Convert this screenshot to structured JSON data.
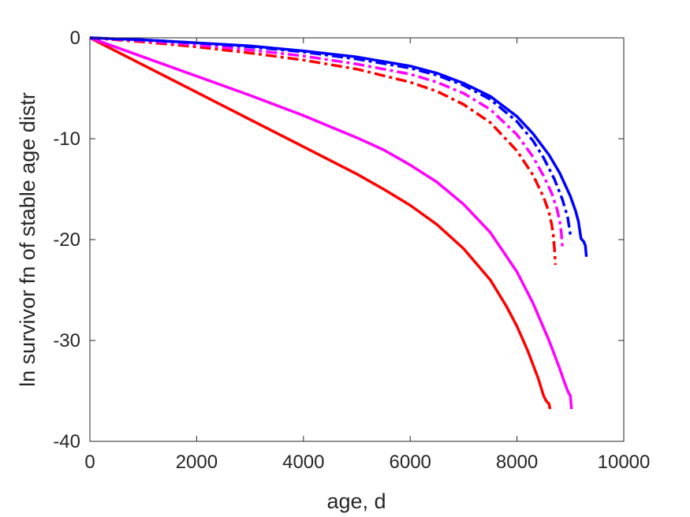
{
  "chart_data": {
    "type": "line",
    "title": "",
    "xlabel": "age, d",
    "ylabel": "ln survivor fn of stable age distr",
    "xlim": [
      0,
      10000
    ],
    "ylim": [
      -40,
      0
    ],
    "xticks": [
      0,
      2000,
      4000,
      6000,
      8000,
      10000
    ],
    "yticks": [
      0,
      -10,
      -20,
      -30,
      -40
    ],
    "xtick_labels": [
      "0",
      "2000",
      "4000",
      "6000",
      "8000",
      "10000"
    ],
    "ytick_labels": [
      "0",
      "-10",
      "-20",
      "-30",
      "-40"
    ],
    "grid": false,
    "legend": "none",
    "series": [
      {
        "color": "#ff0000",
        "style": "solid",
        "x": [
          0,
          1000,
          2000,
          3000,
          4000,
          5000,
          5500,
          6000,
          6500,
          7000,
          7500,
          7800,
          8000,
          8200,
          8400,
          8500,
          8550,
          8600,
          8620
        ],
        "y": [
          0,
          -2.7,
          -5.4,
          -8.1,
          -10.8,
          -13.5,
          -15.0,
          -16.6,
          -18.5,
          -20.9,
          -24.0,
          -26.6,
          -28.6,
          -31.0,
          -33.8,
          -35.5,
          -36.0,
          -36.3,
          -36.8
        ]
      },
      {
        "color": "#ff00ff",
        "style": "solid",
        "x": [
          0,
          1000,
          2000,
          3000,
          4000,
          5000,
          5500,
          6000,
          6500,
          7000,
          7500,
          8000,
          8300,
          8600,
          8800,
          8900,
          8950,
          8980,
          9000,
          9020
        ],
        "y": [
          0,
          -1.9,
          -3.8,
          -5.7,
          -7.7,
          -9.9,
          -11.1,
          -12.6,
          -14.3,
          -16.5,
          -19.3,
          -23.2,
          -26.3,
          -30.0,
          -32.8,
          -34.3,
          -35.0,
          -35.3,
          -35.5,
          -36.8
        ]
      },
      {
        "color": "#ff0000",
        "style": "dashdot",
        "x": [
          0,
          1000,
          2000,
          3000,
          4000,
          5000,
          6000,
          6500,
          7000,
          7500,
          8000,
          8300,
          8500,
          8600,
          8650,
          8680,
          8700,
          8720
        ],
        "y": [
          0,
          -0.4,
          -0.9,
          -1.5,
          -2.2,
          -3.1,
          -4.4,
          -5.3,
          -6.6,
          -8.4,
          -11.2,
          -13.6,
          -15.8,
          -17.3,
          -18.5,
          -19.5,
          -20.8,
          -22.5
        ]
      },
      {
        "color": "#ff00ff",
        "style": "dashdot",
        "x": [
          0,
          1000,
          2000,
          3000,
          4000,
          5000,
          6000,
          6500,
          7000,
          7500,
          8000,
          8300,
          8500,
          8650,
          8750,
          8800,
          8830,
          8850
        ],
        "y": [
          0,
          -0.3,
          -0.7,
          -1.2,
          -1.8,
          -2.6,
          -3.6,
          -4.4,
          -5.5,
          -7.1,
          -9.6,
          -11.8,
          -13.7,
          -15.4,
          -17.0,
          -18.2,
          -19.3,
          -20.7
        ]
      },
      {
        "color": "#0000ff",
        "style": "dashdot",
        "x": [
          0,
          1000,
          2000,
          3000,
          4000,
          5000,
          6000,
          6500,
          7000,
          7500,
          8000,
          8300,
          8500,
          8700,
          8850,
          8950,
          9000
        ],
        "y": [
          0,
          -0.2,
          -0.5,
          -0.9,
          -1.4,
          -2.1,
          -3.0,
          -3.7,
          -4.7,
          -6.1,
          -8.3,
          -10.2,
          -11.9,
          -14.0,
          -16.0,
          -17.8,
          -19.5
        ]
      },
      {
        "color": "#0000ff",
        "style": "solid",
        "x": [
          0,
          1000,
          2000,
          3000,
          4000,
          5000,
          6000,
          6500,
          7000,
          7500,
          8000,
          8300,
          8600,
          8800,
          9000,
          9100,
          9150,
          9200,
          9250,
          9280,
          9300
        ],
        "y": [
          0,
          -0.2,
          -0.5,
          -0.8,
          -1.3,
          -1.9,
          -2.8,
          -3.5,
          -4.5,
          -5.8,
          -7.8,
          -9.5,
          -11.6,
          -13.4,
          -15.7,
          -17.2,
          -18.2,
          -19.9,
          -20.2,
          -20.6,
          -21.7
        ]
      }
    ]
  }
}
